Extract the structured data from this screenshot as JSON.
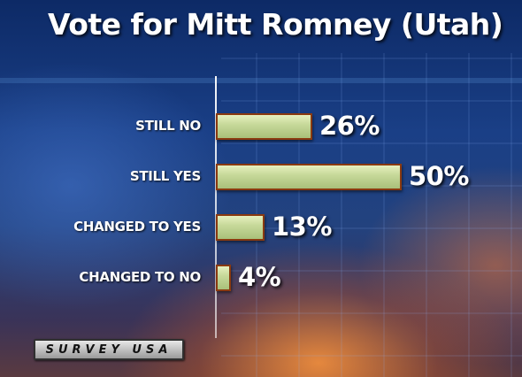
{
  "chart_data": {
    "type": "bar",
    "orientation": "horizontal",
    "title": "Vote for Mitt Romney (Utah)",
    "categories": [
      "STILL NO",
      "STILL YES",
      "CHANGED TO YES",
      "CHANGED TO NO"
    ],
    "values": [
      26,
      50,
      13,
      4
    ],
    "value_labels": [
      "26%",
      "50%",
      "13%",
      "4%"
    ],
    "unit": "%",
    "xlim": [
      0,
      50
    ],
    "grid": true,
    "legend": "none",
    "colors": {
      "bar_fill": "#c7d99a",
      "bar_border": "#8a3a10",
      "label_text": "#ffffff"
    }
  },
  "branding": {
    "logo_text": "SURVEY USA",
    "logo_icon": "surveyusa-logo"
  }
}
